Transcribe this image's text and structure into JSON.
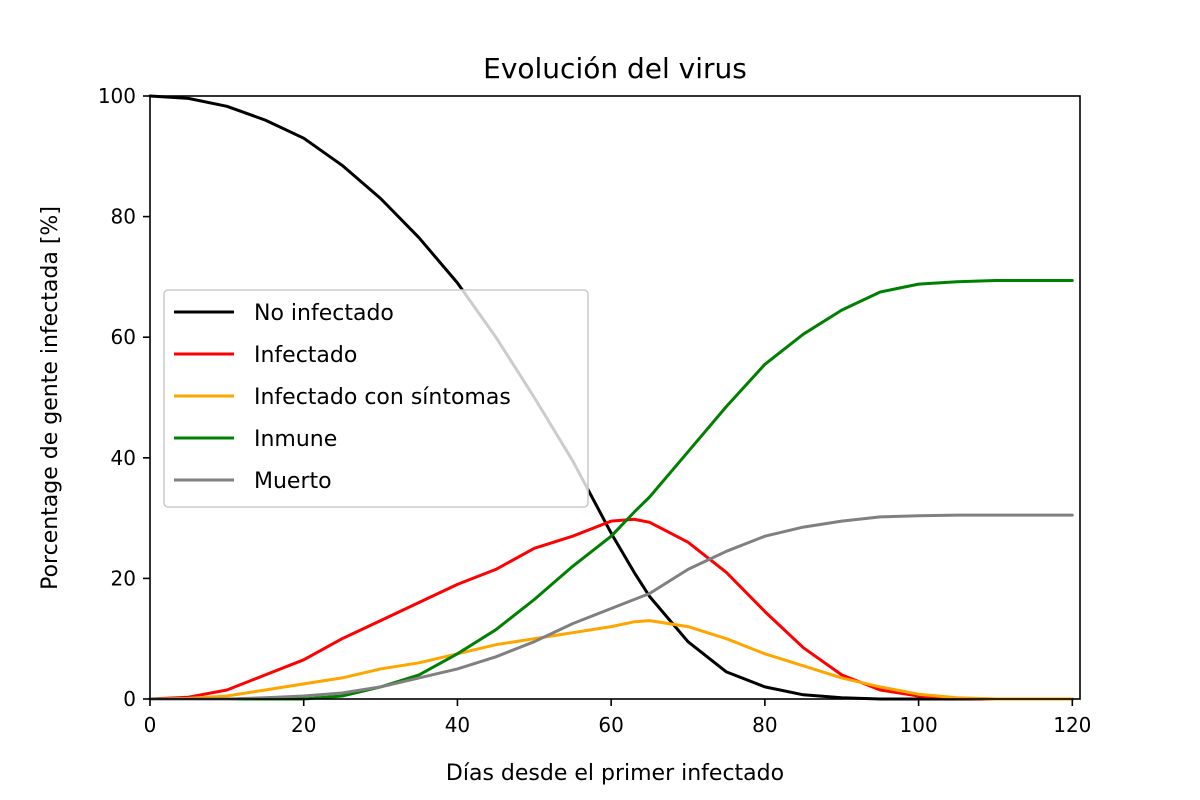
{
  "chart_data": {
    "type": "line",
    "title": "Evolución del virus",
    "xlabel": "Días desde el primer infectado",
    "ylabel": "Porcentage de gente infectada [%]",
    "xlim": [
      0,
      121
    ],
    "ylim": [
      0,
      100
    ],
    "xticks": [
      0,
      20,
      40,
      60,
      80,
      100,
      120
    ],
    "yticks": [
      0,
      20,
      40,
      60,
      80,
      100
    ],
    "grid": false,
    "legend_position": "center-left",
    "x": [
      0,
      5,
      10,
      15,
      20,
      25,
      30,
      35,
      40,
      45,
      50,
      55,
      60,
      63,
      65,
      70,
      75,
      80,
      85,
      90,
      95,
      100,
      105,
      110,
      115,
      120
    ],
    "series": [
      {
        "name": "No infectado",
        "color": "#000000",
        "values": [
          100,
          99.6,
          98.3,
          96,
          93,
          88.5,
          83,
          76.5,
          69,
          60,
          50,
          39.5,
          27.5,
          21,
          17,
          9.5,
          4.5,
          2,
          0.7,
          0.2,
          0,
          0,
          0,
          0,
          0,
          0
        ]
      },
      {
        "name": "Infectado",
        "color": "#ff0000",
        "values": [
          0,
          0.3,
          1.5,
          4,
          6.5,
          10,
          13,
          16,
          19,
          21.5,
          25,
          27,
          29.5,
          29.8,
          29.3,
          26,
          21,
          14.5,
          8.5,
          4,
          1.5,
          0.5,
          0.1,
          0,
          0,
          0
        ]
      },
      {
        "name": "Infectado con síntomas",
        "color": "#ffa500",
        "values": [
          0,
          0.1,
          0.5,
          1.5,
          2.5,
          3.5,
          5,
          6,
          7.5,
          9,
          10,
          11,
          12,
          12.8,
          13,
          12,
          10,
          7.5,
          5.5,
          3.5,
          2,
          0.8,
          0.2,
          0,
          0,
          0
        ]
      },
      {
        "name": "Inmune",
        "color": "#008000",
        "values": [
          0,
          0,
          0,
          0,
          0,
          0.5,
          2,
          4,
          7.5,
          11.5,
          16.5,
          22,
          27,
          31,
          33.5,
          41,
          48.5,
          55.5,
          60.5,
          64.5,
          67.5,
          68.8,
          69.2,
          69.4,
          69.4,
          69.4
        ]
      },
      {
        "name": "Muerto",
        "color": "#808080",
        "values": [
          0,
          0,
          0,
          0.2,
          0.5,
          1,
          2,
          3.5,
          5,
          7,
          9.5,
          12.5,
          15,
          16.5,
          17.5,
          21.5,
          24.5,
          27,
          28.5,
          29.5,
          30.2,
          30.4,
          30.5,
          30.5,
          30.5,
          30.5
        ]
      }
    ]
  }
}
